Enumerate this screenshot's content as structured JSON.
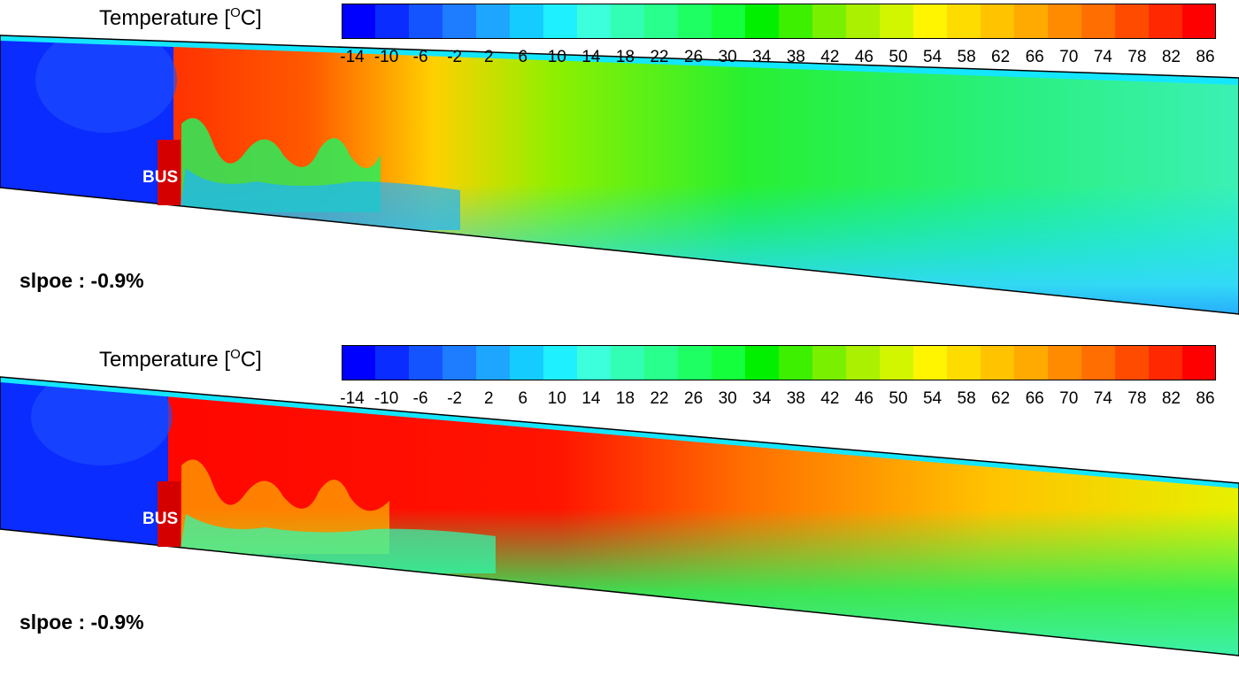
{
  "colorbar": {
    "title": "Temperature [",
    "title_sup": "O",
    "title_end": "C]",
    "ticks": [
      "-14",
      "-10",
      "-6",
      "-2",
      "2",
      "6",
      "10",
      "14",
      "18",
      "22",
      "26",
      "30",
      "34",
      "38",
      "42",
      "46",
      "50",
      "54",
      "58",
      "62",
      "66",
      "70",
      "74",
      "78",
      "82",
      "86"
    ],
    "colors": [
      "#0000ff",
      "#0a2cff",
      "#1454ff",
      "#1e7cff",
      "#1ea6ff",
      "#14ccff",
      "#1ef0ff",
      "#3cffdc",
      "#32ffb4",
      "#28ff8c",
      "#1eff64",
      "#14ff3c",
      "#00f000",
      "#3cf000",
      "#78f000",
      "#aaf000",
      "#d2f500",
      "#fff500",
      "#ffdc00",
      "#ffc300",
      "#ffaa00",
      "#ff8c00",
      "#ff6e00",
      "#ff4b00",
      "#ff2800",
      "#ff0000"
    ]
  },
  "panels": [
    {
      "bus_label": "BUS",
      "slope_label": "slpoe : -0.9%"
    },
    {
      "bus_label": "BUS",
      "slope_label": "slpoe : -0.9%"
    }
  ]
}
